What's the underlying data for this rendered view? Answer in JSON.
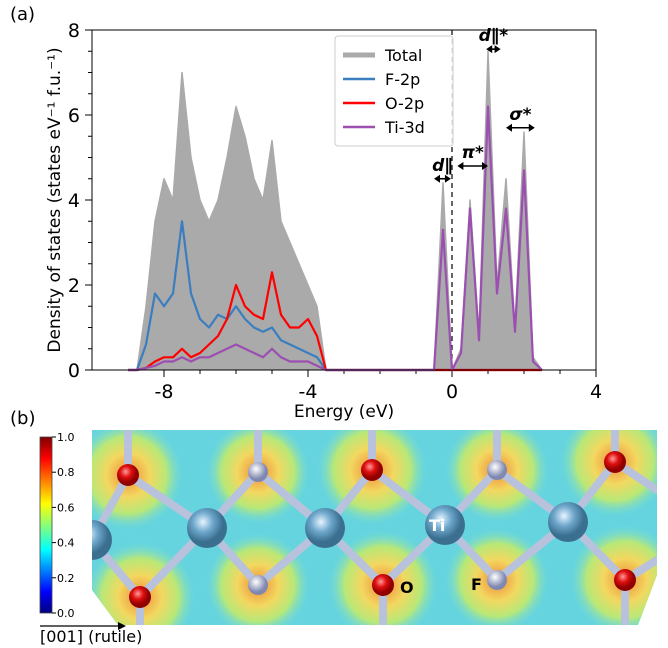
{
  "panel_labels": [
    "(a)",
    "(b)"
  ],
  "chart_data": {
    "type": "line",
    "xlabel": "Energy (eV)",
    "ylabel": "Density of states (states eV⁻¹ f.u.⁻¹)",
    "x": [
      -9,
      -8.75,
      -8.5,
      -8.25,
      -8,
      -7.75,
      -7.5,
      -7.25,
      -7,
      -6.75,
      -6.5,
      -6.25,
      -6,
      -5.75,
      -5.5,
      -5.25,
      -5,
      -4.75,
      -4.5,
      -4.25,
      -4,
      -3.75,
      -3.5,
      -3.25,
      -3,
      -2.75,
      -2.5,
      -2.25,
      -2,
      -1.75,
      -1.5,
      -1.25,
      -1,
      -0.75,
      -0.5,
      -0.25,
      0,
      0.25,
      0.5,
      0.75,
      1,
      1.25,
      1.5,
      1.75,
      2,
      2.25,
      2.5
    ],
    "series": [
      {
        "name": "Total",
        "color": "#aaaaaa",
        "fill": true,
        "values": [
          0,
          0,
          1.5,
          3.5,
          4.5,
          4,
          7,
          5,
          4,
          3.5,
          4,
          5,
          6.2,
          5.5,
          4.5,
          4,
          5.4,
          3.5,
          3,
          2.5,
          2,
          1.5,
          0,
          0,
          0,
          0,
          0,
          0,
          0,
          0,
          0,
          0,
          0,
          0,
          0,
          4.4,
          0,
          0.5,
          4,
          0.8,
          7.5,
          2,
          4.5,
          1,
          5.6,
          0.3,
          0
        ]
      },
      {
        "name": "F-2p",
        "color": "#3a7ebf",
        "values": [
          0,
          0,
          0.6,
          1.8,
          1.5,
          1.8,
          3.5,
          1.8,
          1.2,
          1.0,
          1.3,
          1.2,
          1.5,
          1.2,
          1.0,
          0.9,
          1.0,
          0.7,
          0.6,
          0.5,
          0.4,
          0.3,
          0,
          0,
          0,
          0,
          0,
          0,
          0,
          0,
          0,
          0,
          0,
          0,
          0,
          0,
          0,
          0,
          0,
          0,
          0,
          0,
          0,
          0,
          0,
          0,
          0
        ]
      },
      {
        "name": "O-2p",
        "color": "#ff0000",
        "values": [
          0,
          0,
          0.05,
          0.2,
          0.3,
          0.3,
          0.5,
          0.3,
          0.4,
          0.6,
          0.8,
          1.2,
          2.0,
          1.5,
          1.3,
          1.2,
          2.3,
          1.3,
          1.0,
          1.0,
          1.2,
          0.8,
          0,
          0,
          0,
          0,
          0,
          0,
          0,
          0,
          0,
          0,
          0,
          0,
          0,
          0,
          0,
          0,
          0,
          0,
          0,
          0,
          0,
          0,
          0,
          0,
          0
        ]
      },
      {
        "name": "Ti-3d",
        "color": "#9b4fb0",
        "values": [
          0,
          0,
          0.05,
          0.1,
          0.2,
          0.2,
          0.3,
          0.2,
          0.3,
          0.3,
          0.4,
          0.5,
          0.6,
          0.5,
          0.4,
          0.3,
          0.5,
          0.3,
          0.2,
          0.2,
          0.2,
          0.1,
          0,
          0,
          0,
          0,
          0,
          0,
          0,
          0,
          0,
          0,
          0,
          0,
          0,
          3.3,
          0,
          0.4,
          3.8,
          0.7,
          6.2,
          1.8,
          3.8,
          0.9,
          4.7,
          0.2,
          0
        ]
      }
    ],
    "annotations": [
      "d∥",
      "π*",
      "d∥*",
      "σ*"
    ],
    "xlim": [
      -10,
      4
    ],
    "xticks": [
      -8,
      -4,
      0,
      4
    ],
    "ylim": [
      0,
      8
    ],
    "yticks": [
      0,
      2,
      4,
      6,
      8
    ],
    "legend": "upper center"
  },
  "structure": {
    "colorbar_ticks": [
      {
        "value": 0,
        "label": "0.0"
      },
      0.2,
      0.4,
      0.6,
      0.8,
      {
        "value": 1,
        "label": "1.0"
      }
    ],
    "atom_labels": [
      "Ti",
      "O",
      "F"
    ],
    "direction_label": "[001] (rutile)"
  }
}
